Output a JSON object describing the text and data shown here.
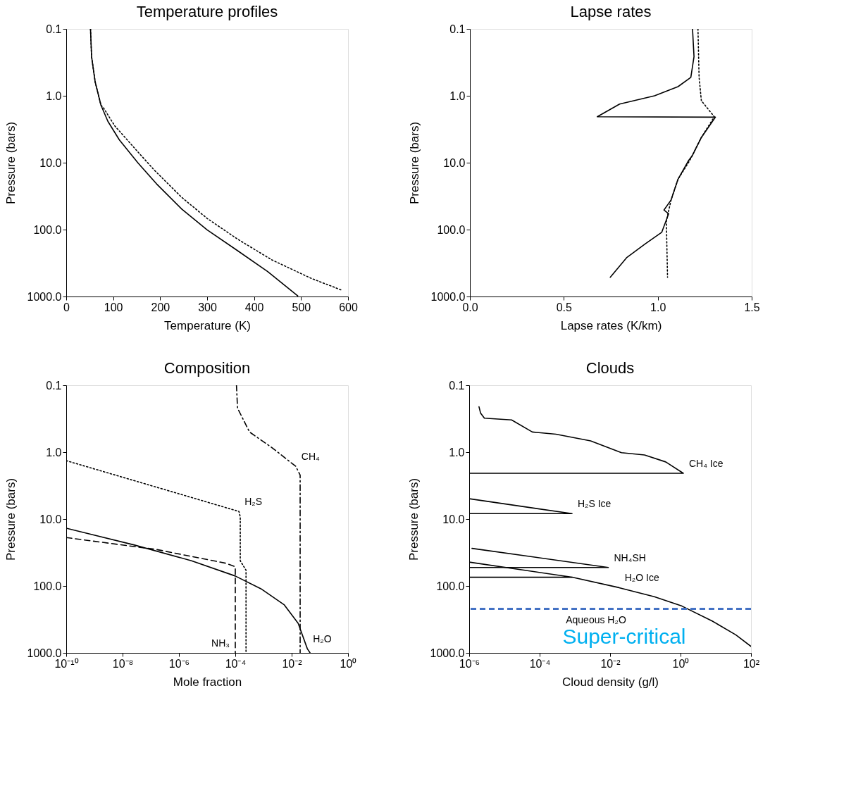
{
  "chart_data": [
    {
      "type": "line",
      "title": "Temperature profiles",
      "xlabel": "Temperature (K)",
      "ylabel": "Pressure (bars)",
      "log": "y",
      "xlim": [
        0,
        600
      ],
      "xticks": [
        0,
        100,
        200,
        300,
        400,
        500,
        600
      ],
      "ylim": [
        1000,
        0.1
      ],
      "yticks": [
        {
          "value": 0.1,
          "label": "0.1"
        },
        {
          "value": 1,
          "label": "1.0"
        },
        {
          "value": 10,
          "label": "10.0"
        },
        {
          "value": 100,
          "label": "100.0"
        },
        {
          "value": 1000,
          "label": "1000.0"
        }
      ],
      "grid": false,
      "marker": "none",
      "series": [
        {
          "color": "#000000",
          "line_style": "solid",
          "x": [
            51.7,
            54,
            61.6,
            73.9,
            88.7,
            113,
            153,
            192,
            246,
            300,
            365,
            429,
            493
          ],
          "values": [
            0.1,
            0.26,
            0.62,
            1.38,
            2.41,
            4.55,
            10.1,
            20.6,
            49.4,
            101,
            207,
            424,
            977
          ]
        },
        {
          "color": "#000000",
          "line_style": "dotted",
          "x": [
            51.7,
            54,
            61.6,
            73.9,
            79,
            103.4,
            143,
            187,
            246,
            300,
            365,
            438,
            522,
            586
          ],
          "values": [
            0.1,
            0.26,
            0.62,
            1.38,
            1.5,
            2.82,
            5.8,
            12.8,
            33,
            68,
            139,
            284,
            537,
            800
          ]
        }
      ]
    },
    {
      "type": "line",
      "title": "Lapse rates",
      "xlabel": "Lapse rates (K/km)",
      "ylabel": "Pressure (bars)",
      "log": "y",
      "xlim": [
        0,
        1.5
      ],
      "xticks": [
        {
          "value": 0,
          "label": "0.0"
        },
        {
          "value": 0.5,
          "label": "0.5"
        },
        {
          "value": 1,
          "label": "1.0"
        },
        {
          "value": 1.5,
          "label": "1.5"
        }
      ],
      "ylim": [
        1000,
        0.1
      ],
      "yticks": [
        {
          "value": 0.1,
          "label": "0.1"
        },
        {
          "value": 1,
          "label": "1.0"
        },
        {
          "value": 10,
          "label": "10.0"
        },
        {
          "value": 100,
          "label": "100.0"
        },
        {
          "value": 1000,
          "label": "1000.0"
        }
      ],
      "grid": false,
      "marker": "none",
      "series": [
        {
          "color": "#000000",
          "line_style": "solid",
          "x": [
            1.185,
            1.193,
            1.176,
            1.108,
            0.983,
            0.797,
            0.678,
            1.307,
            1.232,
            1.183,
            1.164,
            1.108,
            1.071,
            1.033,
            1.058,
            1.021,
            0.934,
            0.834,
            0.747
          ],
          "values": [
            0.1,
            0.26,
            0.53,
            0.73,
            1.0,
            1.33,
            2.06,
            2.09,
            4.2,
            7.9,
            9.3,
            17.6,
            36,
            51,
            58,
            110,
            163,
            263,
            516
          ]
        },
        {
          "color": "#000000",
          "line_style": "dotted",
          "x": [
            1.214,
            1.22,
            1.232,
            1.301,
            1.232,
            1.17,
            1.108,
            1.071,
            1.046,
            1.048,
            1.052
          ],
          "values": [
            0.1,
            0.53,
            1.18,
            2.06,
            4.2,
            9.3,
            17.6,
            36,
            74,
            151,
            516
          ]
        }
      ]
    },
    {
      "type": "line",
      "title": "Composition",
      "xlabel": "Mole fraction",
      "ylabel": "Pressure (bars)",
      "log": "xy",
      "xlim": [
        1e-10,
        1
      ],
      "xticks": [
        {
          "value": 1e-10,
          "label": "10⁻¹⁰"
        },
        {
          "value": 1e-08,
          "label": "10⁻⁸"
        },
        {
          "value": 1e-06,
          "label": "10⁻⁶"
        },
        {
          "value": 0.0001,
          "label": "10⁻⁴"
        },
        {
          "value": 0.01,
          "label": "10⁻²"
        },
        {
          "value": 1,
          "label": "10⁰"
        }
      ],
      "ylim": [
        1000,
        0.1
      ],
      "yticks": [
        {
          "value": 0.1,
          "label": "0.1"
        },
        {
          "value": 1,
          "label": "1.0"
        },
        {
          "value": 10,
          "label": "10.0"
        },
        {
          "value": 100,
          "label": "100.0"
        },
        {
          "value": 1000,
          "label": "1000.0"
        }
      ],
      "grid": false,
      "marker": "none",
      "series": [
        {
          "color": "#000000",
          "line_style": "solid",
          "x": [
            1e-10,
            2.5e-08,
            2.8e-06,
            0.0001,
            0.00081,
            0.0055,
            0.017,
            0.036,
            0.045
          ],
          "values": [
            13.7,
            24.3,
            42,
            71,
            110,
            192,
            362,
            867,
            1000
          ]
        },
        {
          "color": "#000000",
          "line_style": "dashdot",
          "x": [
            0.00011,
            0.00012,
            0.00032,
            0.0021,
            0.014,
            0.02,
            0.02
          ],
          "values": [
            0.1,
            0.22,
            0.5,
            0.87,
            1.63,
            2.2,
            1000
          ]
        },
        {
          "color": "#000000",
          "line_style": "dotted",
          "x": [
            1e-10,
            1.6e-07,
            0.000135,
            0.00015,
            0.00015,
            0.00024,
            0.00024
          ],
          "values": [
            1.34,
            3.34,
            7.7,
            9.3,
            42,
            58,
            1000
          ]
        },
        {
          "color": "#000000",
          "line_style": "dashed",
          "x": [
            1e-10,
            1.6e-07,
            4.8e-05,
            0.0001,
            0.0001
          ],
          "values": [
            18.9,
            28.5,
            45.9,
            51.7,
            1000
          ]
        }
      ],
      "annotations": [
        {
          "text": "CH₄",
          "x": 0.014,
          "y": 1.63
        },
        {
          "text": "H₂S",
          "x": 0.000135,
          "y": 7.7
        },
        {
          "text": "NH₃",
          "x": 0.0001,
          "y": 1000
        },
        {
          "text": "H₂O",
          "x": 0.036,
          "y": 867
        }
      ]
    },
    {
      "type": "line",
      "title": "Clouds",
      "xlabel": "Cloud density (g/l)",
      "ylabel": "Pressure (bars)",
      "log": "xy",
      "xlim": [
        1e-06,
        100
      ],
      "xticks": [
        {
          "value": 1e-06,
          "label": "10⁻⁶"
        },
        {
          "value": 0.0001,
          "label": "10⁻⁴"
        },
        {
          "value": 0.01,
          "label": "10⁻²"
        },
        {
          "value": 1,
          "label": "10⁰"
        },
        {
          "value": 100,
          "label": "10²"
        }
      ],
      "ylim": [
        1000,
        0.1
      ],
      "yticks": [
        {
          "value": 0.1,
          "label": "0.1"
        },
        {
          "value": 1,
          "label": "1.0"
        },
        {
          "value": 10,
          "label": "10.0"
        },
        {
          "value": 100,
          "label": "100.0"
        },
        {
          "value": 1000,
          "label": "1000.0"
        }
      ],
      "grid": false,
      "marker": "none",
      "series": [
        {
          "color": "#000000",
          "line_style": "solid",
          "x": [
            1.9e-06,
            2.1e-06,
            2.7e-06,
            1.6e-05,
            6.2e-05,
            0.00029,
            0.0028,
            0.021,
            0.095,
            0.38,
            1.2,
            1e-06
          ],
          "values": [
            0.21,
            0.26,
            0.31,
            0.33,
            0.5,
            0.54,
            0.68,
            1.02,
            1.1,
            1.4,
            2.07,
            2.07
          ]
        },
        {
          "color": "#000000",
          "line_style": "solid",
          "x": [
            1e-06,
            0.00083,
            1e-06
          ],
          "values": [
            4.97,
            8.3,
            8.3
          ]
        },
        {
          "color": "#000000",
          "line_style": "solid",
          "x": [
            1.2e-06,
            0.0089,
            1e-06
          ],
          "values": [
            27.4,
            53,
            53
          ]
        },
        {
          "color": "#000000",
          "line_style": "solid",
          "x": [
            1e-06,
            0.00083,
            1e-06
          ],
          "values": [
            44,
            74,
            74
          ]
        },
        {
          "color": "#000000",
          "line_style": "solid",
          "x": [
            0.00083,
            0.018,
            0.18,
            1.1,
            7.9,
            37,
            100
          ],
          "values": [
            74,
            106,
            145,
            200,
            334,
            538,
            800
          ]
        }
      ],
      "ref_lines": [
        {
          "axis": "y",
          "value": 220,
          "label": "Super-critical",
          "color": "#4472c4",
          "line_style": "dashed"
        }
      ],
      "annotations": [
        {
          "text": "CH₄ Ice",
          "x": 1.2,
          "y": 2.07
        },
        {
          "text": "H₂S Ice",
          "x": 0.00083,
          "y": 8.3
        },
        {
          "text": "NH₄SH",
          "x": 0.0089,
          "y": 53
        },
        {
          "text": "H₂O Ice",
          "x": 0.018,
          "y": 106
        },
        "Aqueous H₂O"
      ]
    }
  ]
}
